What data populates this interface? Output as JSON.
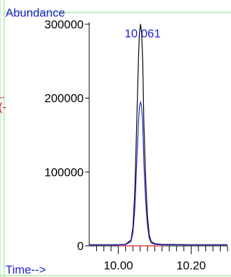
{
  "chart_data": {
    "type": "line",
    "ylabel": "Abundance",
    "xlabel": "Time-->",
    "xlim": [
      9.92,
      10.3
    ],
    "ylim": [
      0,
      300000
    ],
    "x_ticks": [
      10.0,
      10.2
    ],
    "x_tick_labels": [
      "10.00",
      "10.20"
    ],
    "y_ticks": [
      0,
      100000,
      200000,
      300000
    ],
    "y_tick_labels": [
      "0",
      "100000",
      "200000",
      "300000"
    ],
    "peak_label": {
      "text": "10.061",
      "x": 10.061
    },
    "colors": {
      "axis": "#000000",
      "total": "#000000",
      "ion": "#2222cc",
      "baseline": "#dd2222",
      "label_blue": "#1f1fd0",
      "grid_green": "#7fe07f",
      "partial_red": "#dd2222"
    },
    "partial_text": "(-",
    "series": [
      {
        "x": [
          9.92,
          10.0,
          10.02,
          10.035,
          10.04,
          10.045,
          10.05,
          10.055,
          10.058,
          10.061,
          10.064,
          10.067,
          10.07,
          10.075,
          10.08,
          10.085,
          10.09,
          10.1,
          10.12,
          10.2,
          10.3
        ],
        "y": [
          1500,
          1500,
          2000,
          8000,
          25000,
          70000,
          155000,
          250000,
          288000,
          300000,
          288000,
          250000,
          170000,
          90000,
          40000,
          15000,
          6000,
          3000,
          2000,
          1500,
          1500
        ]
      },
      {
        "x": [
          9.92,
          10.0,
          10.02,
          10.035,
          10.04,
          10.045,
          10.05,
          10.055,
          10.058,
          10.061,
          10.064,
          10.067,
          10.07,
          10.075,
          10.08,
          10.085,
          10.09,
          10.1,
          10.12,
          10.2,
          10.3
        ],
        "y": [
          1200,
          1200,
          1500,
          6000,
          18000,
          48000,
          105000,
          165000,
          188000,
          195000,
          188000,
          165000,
          115000,
          60000,
          27000,
          10000,
          4000,
          2000,
          1500,
          1200,
          1200
        ]
      },
      {
        "x": [
          10.0,
          10.12
        ],
        "y": [
          0,
          0
        ]
      }
    ]
  }
}
